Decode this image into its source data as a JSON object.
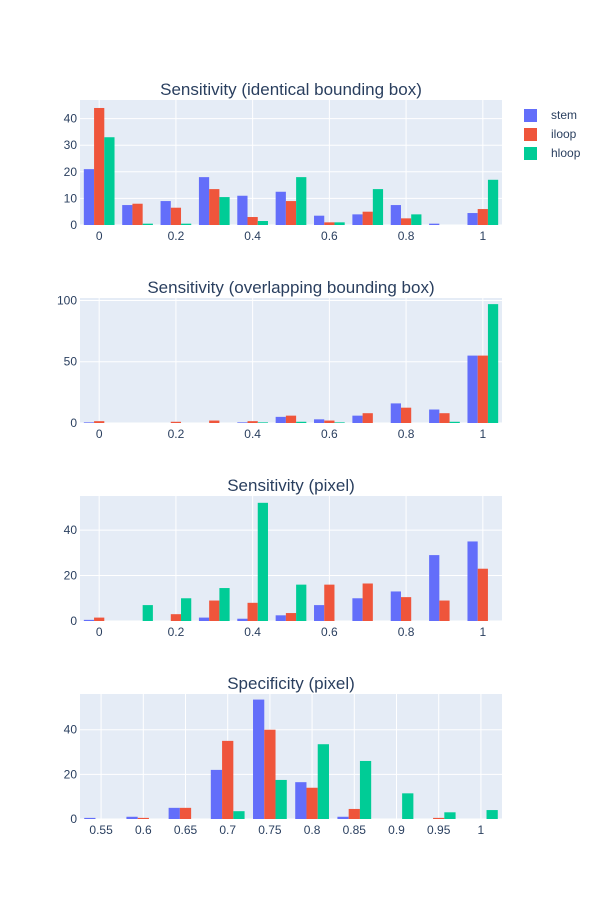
{
  "legend": {
    "items": [
      {
        "name": "stem",
        "color": "#636efa"
      },
      {
        "name": "iloop",
        "color": "#ef553b"
      },
      {
        "name": "hloop",
        "color": "#00cc96"
      }
    ],
    "placement": "top-right"
  },
  "chart_data": [
    {
      "type": "bar",
      "title": "Sensitivity (identical bounding box)",
      "x": [
        0,
        0.1,
        0.2,
        0.3,
        0.4,
        0.5,
        0.6,
        0.7,
        0.8,
        0.9,
        1
      ],
      "xticks": [
        0,
        0.2,
        0.4,
        0.6,
        0.8,
        1
      ],
      "xlim": [
        -0.05,
        1.05
      ],
      "ylim": [
        0,
        47
      ],
      "yticks": [
        0,
        10,
        20,
        30,
        40
      ],
      "grid": true,
      "series": [
        {
          "name": "stem",
          "values": [
            21,
            7.5,
            9,
            18,
            11,
            12.5,
            3.5,
            4,
            7.5,
            0.5,
            4.5
          ]
        },
        {
          "name": "iloop",
          "values": [
            44,
            8,
            6.5,
            13.5,
            3,
            9,
            1,
            5,
            2.5,
            0,
            6
          ]
        },
        {
          "name": "hloop",
          "values": [
            33,
            0.5,
            0.5,
            10.5,
            1.5,
            18,
            1,
            13.5,
            4,
            0,
            17
          ]
        }
      ]
    },
    {
      "type": "bar",
      "title": "Sensitivity (overlapping bounding box)",
      "x": [
        0,
        0.1,
        0.2,
        0.3,
        0.4,
        0.5,
        0.6,
        0.7,
        0.8,
        0.9,
        1
      ],
      "xticks": [
        0,
        0.2,
        0.4,
        0.6,
        0.8,
        1
      ],
      "xlim": [
        -0.05,
        1.05
      ],
      "ylim": [
        0,
        102
      ],
      "yticks": [
        0,
        50,
        100
      ],
      "grid": true,
      "series": [
        {
          "name": "stem",
          "values": [
            0.5,
            0,
            0,
            0,
            0.5,
            5,
            3,
            6,
            16,
            11,
            55
          ]
        },
        {
          "name": "iloop",
          "values": [
            1.5,
            0,
            1,
            2,
            1.5,
            6,
            2,
            8,
            12.5,
            8,
            55
          ]
        },
        {
          "name": "hloop",
          "values": [
            0,
            0,
            0,
            0,
            0.5,
            1,
            0.5,
            0,
            0,
            1,
            97
          ]
        }
      ]
    },
    {
      "type": "bar",
      "title": "Sensitivity (pixel)",
      "x": [
        0,
        0.1,
        0.2,
        0.3,
        0.4,
        0.5,
        0.6,
        0.7,
        0.8,
        0.9,
        1
      ],
      "xticks": [
        0,
        0.2,
        0.4,
        0.6,
        0.8,
        1
      ],
      "xlim": [
        -0.05,
        1.05
      ],
      "ylim": [
        0,
        55
      ],
      "yticks": [
        0,
        20,
        40
      ],
      "grid": true,
      "series": [
        {
          "name": "stem",
          "values": [
            0.5,
            0,
            0,
            1.5,
            1,
            2.5,
            7,
            10,
            13,
            29,
            35
          ]
        },
        {
          "name": "iloop",
          "values": [
            1.5,
            0,
            3,
            9,
            8,
            3.5,
            16,
            16.5,
            10.5,
            9,
            23
          ]
        },
        {
          "name": "hloop",
          "values": [
            0,
            7,
            10,
            14.5,
            52,
            16,
            0,
            0,
            0,
            0,
            0
          ]
        }
      ]
    },
    {
      "type": "bar",
      "title": "Specificity (pixel)",
      "x": [
        0.55,
        0.6,
        0.65,
        0.7,
        0.75,
        0.8,
        0.85,
        0.9,
        0.95,
        1
      ],
      "xticks": [
        0.55,
        0.6,
        0.65,
        0.7,
        0.75,
        0.8,
        0.85,
        0.9,
        0.95,
        1
      ],
      "xlim": [
        0.525,
        1.025
      ],
      "ylim": [
        0,
        56
      ],
      "yticks": [
        0,
        20,
        40
      ],
      "grid": true,
      "series": [
        {
          "name": "stem",
          "values": [
            0.5,
            1,
            5,
            22,
            53.5,
            16.5,
            1,
            0,
            0,
            0
          ]
        },
        {
          "name": "iloop",
          "values": [
            0,
            0.5,
            5,
            35,
            40,
            14,
            4.5,
            0,
            0.5,
            0
          ]
        },
        {
          "name": "hloop",
          "values": [
            0,
            0,
            0,
            3.5,
            17.5,
            33.5,
            26,
            11.5,
            3,
            4
          ]
        }
      ]
    }
  ]
}
